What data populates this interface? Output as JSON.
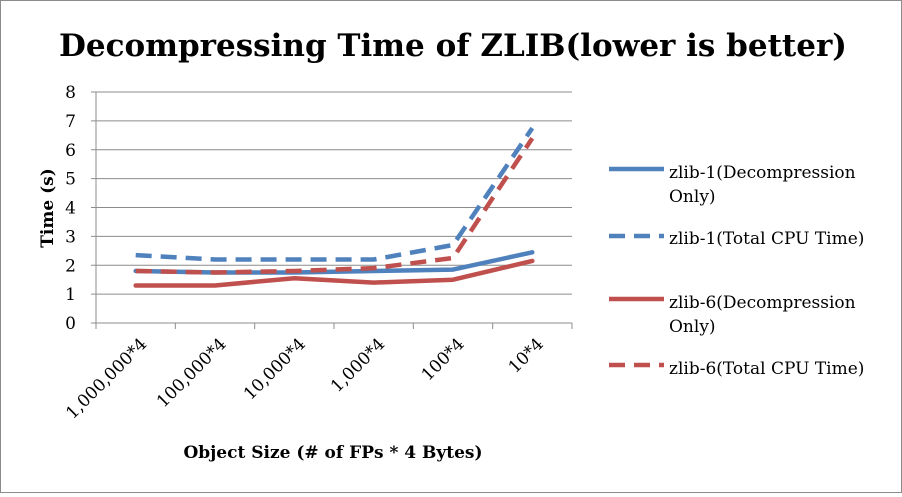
{
  "chart_data": {
    "type": "line",
    "title": "Decompressing Time of ZLIB(lower is better)",
    "xlabel": "Object Size (# of FPs * 4 Bytes)",
    "ylabel": "Time (s)",
    "ylim": [
      0,
      8
    ],
    "yticks": [
      "0",
      "1",
      "2",
      "3",
      "4",
      "5",
      "6",
      "7",
      "8"
    ],
    "categories": [
      "1,000,000*4",
      "100,000*4",
      "10,000*4",
      "1,000*4",
      "100*4",
      "10*4"
    ],
    "grid": true,
    "legend_position": "right",
    "series": [
      {
        "name": "zlib-1(Decompression Only)",
        "legend_lines": [
          "zlib-1(Decompression",
          "Only)"
        ],
        "color": "#4f81bd",
        "dash": false,
        "values": [
          1.8,
          1.75,
          1.75,
          1.8,
          1.85,
          2.45
        ]
      },
      {
        "name": "zlib-1(Total CPU Time)",
        "legend_lines": [
          "zlib-1(Total CPU Time)"
        ],
        "color": "#4f81bd",
        "dash": true,
        "values": [
          2.35,
          2.2,
          2.2,
          2.2,
          2.7,
          6.75
        ]
      },
      {
        "name": "zlib-6(Decompression Only)",
        "legend_lines": [
          "zlib-6(Decompression",
          "Only)"
        ],
        "color": "#c0504d",
        "dash": false,
        "values": [
          1.3,
          1.3,
          1.55,
          1.4,
          1.5,
          2.15
        ]
      },
      {
        "name": "zlib-6(Total CPU Time)",
        "legend_lines": [
          "zlib-6(Total CPU Time)"
        ],
        "color": "#c0504d",
        "dash": true,
        "values": [
          1.8,
          1.75,
          1.8,
          1.9,
          2.25,
          6.4
        ]
      }
    ]
  }
}
